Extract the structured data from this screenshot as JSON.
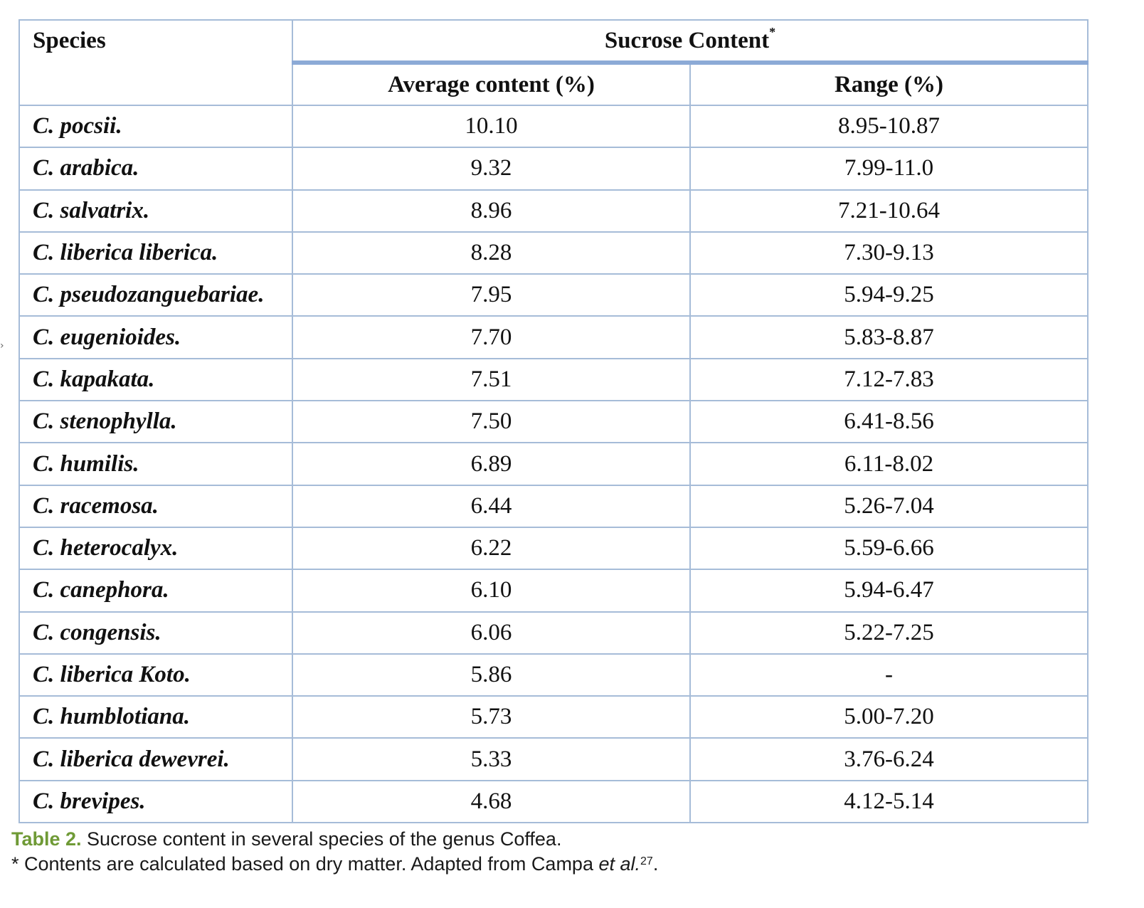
{
  "table": {
    "header": {
      "species": "Species",
      "group": "Sucrose Content",
      "group_marker": "*",
      "average": "Average content (%)",
      "range": "Range (%)"
    },
    "rows": [
      {
        "species": "C. pocsii.",
        "average": "10.10",
        "range": "8.95-10.87"
      },
      {
        "species": "C. arabica.",
        "average": "9.32",
        "range": "7.99-11.0"
      },
      {
        "species": "C. salvatrix.",
        "average": "8.96",
        "range": "7.21-10.64"
      },
      {
        "species": "C. liberica liberica.",
        "average": "8.28",
        "range": "7.30-9.13"
      },
      {
        "species": "C. pseudozanguebariae.",
        "average": "7.95",
        "range": "5.94-9.25"
      },
      {
        "species": "C. eugenioides.",
        "average": "7.70",
        "range": "5.83-8.87"
      },
      {
        "species": "C. kapakata.",
        "average": "7.51",
        "range": "7.12-7.83"
      },
      {
        "species": "C. stenophylla.",
        "average": "7.50",
        "range": "6.41-8.56"
      },
      {
        "species": "C. humilis.",
        "average": "6.89",
        "range": "6.11-8.02"
      },
      {
        "species": "C. racemosa.",
        "average": "6.44",
        "range": "5.26-7.04"
      },
      {
        "species": "C. heterocalyx.",
        "average": "6.22",
        "range": "5.59-6.66"
      },
      {
        "species": "C. canephora.",
        "average": "6.10",
        "range": "5.94-6.47"
      },
      {
        "species": "C. congensis.",
        "average": "6.06",
        "range": "5.22-7.25"
      },
      {
        "species": "C. liberica Koto.",
        "average": "5.86",
        "range": "-"
      },
      {
        "species": "C. humblotiana.",
        "average": "5.73",
        "range": "5.00-7.20"
      },
      {
        "species": "C. liberica dewevrei.",
        "average": "5.33",
        "range": "3.76-6.24"
      },
      {
        "species": "C. brevipes.",
        "average": "4.68",
        "range": "4.12-5.14"
      }
    ]
  },
  "caption": {
    "label": "Table 2.",
    "text": " Sucrose content in several species of the genus Coffea.",
    "note_prefix": "* Contents are calculated based on dry matter. Adapted from Campa ",
    "note_italic": "et al.",
    "note_ref": "27",
    "note_suffix": "."
  },
  "colors": {
    "grid": "#a6bcd8",
    "header_rule": "#8caad6",
    "caption_label": "#6f9a36"
  }
}
